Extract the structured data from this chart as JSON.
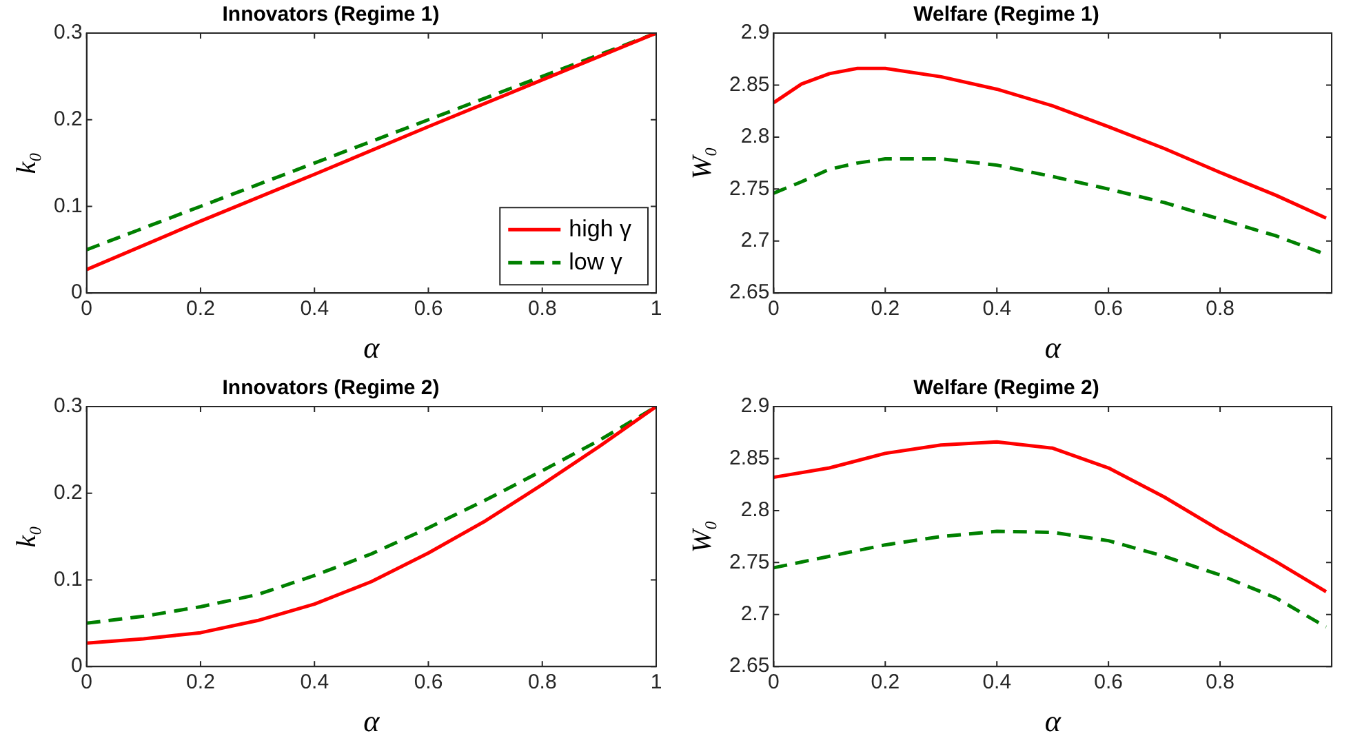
{
  "chart_data": [
    {
      "type": "line",
      "title": "Innovators (Regime 1)",
      "xlabel": "α",
      "ylabel": "k₀",
      "xlim": [
        0,
        1
      ],
      "xticks": [
        0,
        0.2,
        0.4,
        0.6,
        0.8,
        1
      ],
      "ylim": [
        0,
        0.3
      ],
      "yticks": [
        0,
        0.1,
        0.2,
        0.3
      ],
      "grid": false,
      "legend": "bottom right",
      "x": [
        0,
        0.2,
        0.4,
        0.6,
        0.8,
        1
      ],
      "series": [
        {
          "name": "high γ",
          "color": "#ff0000",
          "line_style": "solid",
          "values": [
            0.027,
            0.083,
            0.137,
            0.192,
            0.246,
            0.3
          ]
        },
        {
          "name": "low γ",
          "color": "#008000",
          "line_style": "dashed",
          "values": [
            0.05,
            0.1,
            0.15,
            0.2,
            0.25,
            0.3
          ]
        }
      ]
    },
    {
      "type": "line",
      "title": "Welfare (Regime 1)",
      "xlabel": "α",
      "ylabel": "W₀",
      "xlim": [
        0,
        1
      ],
      "xticks": [
        0,
        0.2,
        0.4,
        0.6,
        0.8
      ],
      "ylim": [
        2.65,
        2.9
      ],
      "yticks": [
        2.65,
        2.7,
        2.75,
        2.8,
        2.85,
        2.9
      ],
      "grid": false,
      "legend": false,
      "x": [
        0,
        0.05,
        0.1,
        0.15,
        0.2,
        0.3,
        0.4,
        0.5,
        0.6,
        0.7,
        0.8,
        0.9,
        0.99
      ],
      "series": [
        {
          "color": "#ff0000",
          "line_style": "solid",
          "values": [
            2.833,
            2.851,
            2.861,
            2.866,
            2.866,
            2.858,
            2.846,
            2.83,
            2.81,
            2.789,
            2.766,
            2.744,
            2.722
          ]
        },
        {
          "color": "#008000",
          "line_style": "dashed",
          "values": [
            2.746,
            2.757,
            2.769,
            2.775,
            2.779,
            2.779,
            2.773,
            2.762,
            2.75,
            2.737,
            2.721,
            2.705,
            2.687
          ]
        }
      ]
    },
    {
      "type": "line",
      "title": "Innovators (Regime 2)",
      "xlabel": "α",
      "ylabel": "k₀",
      "xlim": [
        0,
        1
      ],
      "xticks": [
        0,
        0.2,
        0.4,
        0.6,
        0.8,
        1
      ],
      "ylim": [
        0,
        0.3
      ],
      "yticks": [
        0,
        0.1,
        0.2,
        0.3
      ],
      "grid": false,
      "legend": false,
      "x": [
        0,
        0.1,
        0.2,
        0.3,
        0.4,
        0.5,
        0.6,
        0.7,
        0.8,
        0.9,
        1
      ],
      "series": [
        {
          "color": "#ff0000",
          "line_style": "solid",
          "values": [
            0.027,
            0.032,
            0.039,
            0.053,
            0.072,
            0.098,
            0.131,
            0.168,
            0.21,
            0.254,
            0.3
          ]
        },
        {
          "color": "#008000",
          "line_style": "dashed",
          "values": [
            0.05,
            0.058,
            0.069,
            0.083,
            0.105,
            0.13,
            0.16,
            0.192,
            0.226,
            0.261,
            0.3
          ]
        }
      ]
    },
    {
      "type": "line",
      "title": "Welfare (Regime 2)",
      "xlabel": "α",
      "ylabel": "W₀",
      "xlim": [
        0,
        1
      ],
      "xticks": [
        0,
        0.2,
        0.4,
        0.6,
        0.8
      ],
      "ylim": [
        2.65,
        2.9
      ],
      "yticks": [
        2.65,
        2.7,
        2.75,
        2.8,
        2.85,
        2.9
      ],
      "grid": false,
      "legend": false,
      "x": [
        0,
        0.1,
        0.2,
        0.3,
        0.4,
        0.5,
        0.6,
        0.7,
        0.8,
        0.9,
        0.99
      ],
      "series": [
        {
          "color": "#ff0000",
          "line_style": "solid",
          "values": [
            2.832,
            2.841,
            2.855,
            2.863,
            2.866,
            2.86,
            2.841,
            2.813,
            2.781,
            2.751,
            2.722
          ]
        },
        {
          "color": "#008000",
          "line_style": "dashed",
          "values": [
            2.745,
            2.756,
            2.767,
            2.775,
            2.78,
            2.779,
            2.771,
            2.756,
            2.738,
            2.716,
            2.688
          ]
        }
      ]
    }
  ]
}
